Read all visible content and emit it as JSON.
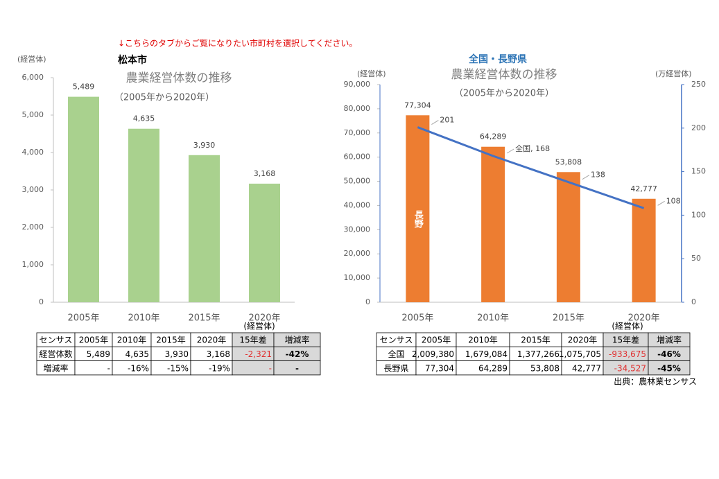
{
  "notice": "↓こちらのタブからご覧になりたい市町村を選択してください。",
  "chart_data": [
    {
      "type": "bar",
      "heading": "松本市",
      "title": "農業経営体数の推移",
      "subtitle": "（2005年から2020年）",
      "y_label": "(経営体)",
      "categories": [
        "2005年",
        "2010年",
        "2015年",
        "2020年"
      ],
      "values": [
        5489,
        4635,
        3930,
        3168
      ],
      "value_labels": [
        "5,489",
        "4,635",
        "3,930",
        "3,168"
      ],
      "color": "#a9d18e",
      "ylim": [
        0,
        6000
      ],
      "yticks": [
        0,
        {
          "value": 1000,
          "label": "1,000"
        },
        {
          "value": 2000,
          "label": "2,000"
        },
        {
          "value": 3000,
          "label": "3,000"
        },
        {
          "value": 4000,
          "label": "4,000"
        },
        {
          "value": 5000,
          "label": "5,000"
        },
        {
          "value": 6000,
          "label": "6,000"
        }
      ]
    },
    {
      "type": "combo",
      "heading": "全国・長野県",
      "title": "農業経営体数の推移",
      "subtitle": "（2005年から2020年）",
      "y_label": "(経営体)",
      "y2_label": "(万経営体)",
      "categories": [
        "2005年",
        "2010年",
        "2015年",
        "2020年"
      ],
      "series": [
        {
          "name": "長野",
          "type": "bar",
          "color": "#ed7d31",
          "values": [
            77304,
            64289,
            53808,
            42777
          ],
          "value_labels": [
            "77,304",
            "64,289",
            "53,808",
            "42,777"
          ]
        },
        {
          "name": "全国",
          "type": "line",
          "axis": "y2",
          "color": "#4472c4",
          "values": [
            201,
            168,
            138,
            108
          ],
          "value_labels": [
            "201",
            "全国, 168",
            "138",
            "108"
          ]
        }
      ],
      "ylim": [
        0,
        90000
      ],
      "yticks": [
        0,
        {
          "value": 10000,
          "label": "10,000"
        },
        {
          "value": 20000,
          "label": "20,000"
        },
        {
          "value": 30000,
          "label": "30,000"
        },
        {
          "value": 40000,
          "label": "40,000"
        },
        {
          "value": 50000,
          "label": "50,000"
        },
        {
          "value": 60000,
          "label": "60,000"
        },
        {
          "value": 70000,
          "label": "70,000"
        },
        {
          "value": 80000,
          "label": "80,000"
        },
        {
          "value": 90000,
          "label": "90,000"
        }
      ],
      "y2lim": [
        0,
        250
      ],
      "y2ticks": [
        0,
        50,
        100,
        150,
        200,
        250
      ]
    }
  ],
  "tables": [
    {
      "unit": "(経営体)",
      "rows": [
        [
          "センサス",
          "2005年",
          "2010年",
          "2015年",
          "2020年",
          "15年差",
          "増減率"
        ],
        [
          "経営体数",
          "5,489",
          "4,635",
          "3,930",
          "3,168",
          "-2,321",
          "-42%"
        ],
        [
          "増減率",
          "-",
          "-16%",
          "-15%",
          "-19%",
          "-",
          "-"
        ]
      ]
    },
    {
      "unit": "(経営体)",
      "rows": [
        [
          "センサス",
          "2005年",
          "2010年",
          "2015年",
          "2020年",
          "15年差",
          "増減率"
        ],
        [
          "全国",
          "2,009,380",
          "1,679,084",
          "1,377,266",
          "1,075,705",
          "-933,675",
          "-46%"
        ],
        [
          "長野県",
          "77,304",
          "64,289",
          "53,808",
          "42,777",
          "-34,527",
          "-45%"
        ]
      ]
    }
  ],
  "source": "出典：農林業センサス"
}
